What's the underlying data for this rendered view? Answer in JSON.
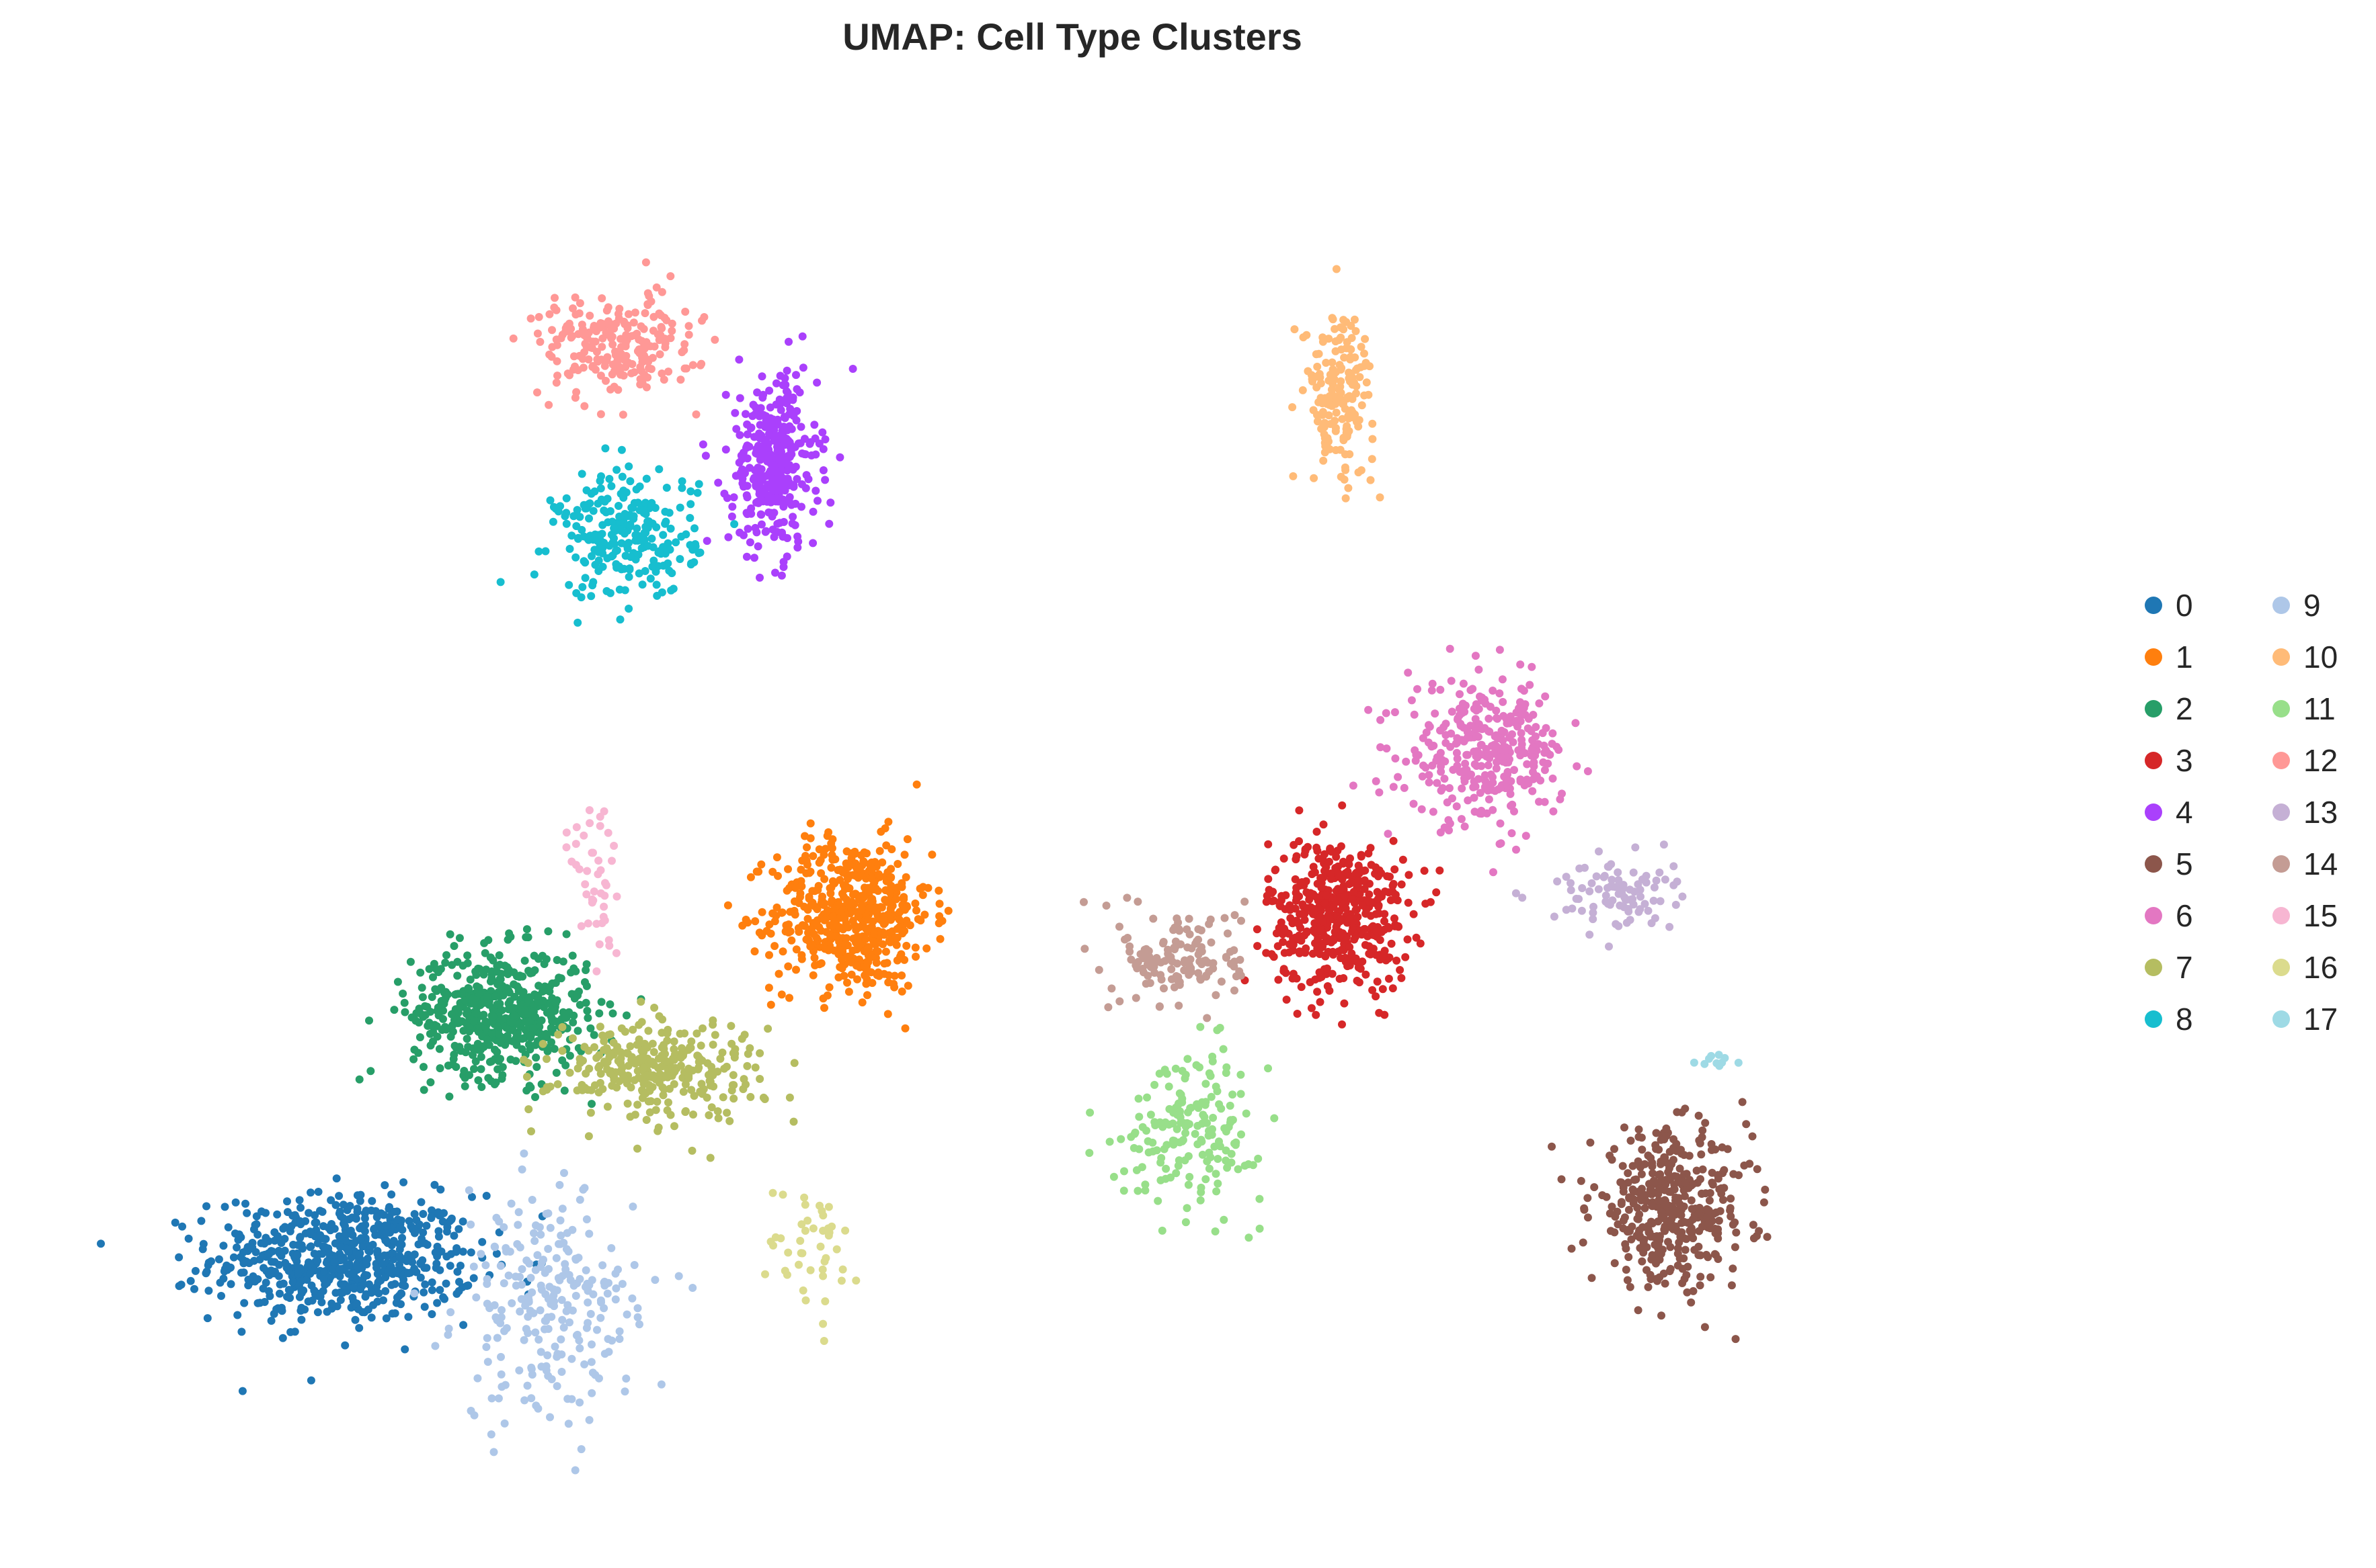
{
  "chart_data": {
    "type": "scatter",
    "title": "UMAP: Cell Type Clusters",
    "xlabel": "",
    "ylabel": "",
    "axes_visible": false,
    "grid": false,
    "legend_placement": "right",
    "legend_columns": 2,
    "xlim": [
      0,
      100
    ],
    "ylim": [
      0,
      100
    ],
    "series": [
      {
        "name": "0",
        "color": "#1f77b4",
        "n_points": 650,
        "center": [
          12.5,
          18.5
        ],
        "spread": [
          7.5,
          5.0
        ]
      },
      {
        "name": "1",
        "color": "#ff7f0e",
        "n_points": 550,
        "center": [
          38.5,
          43.0
        ],
        "spread": [
          4.5,
          6.0
        ]
      },
      {
        "name": "2",
        "color": "#279e68",
        "n_points": 550,
        "center": [
          20.5,
          36.0
        ],
        "spread": [
          5.0,
          5.0
        ]
      },
      {
        "name": "3",
        "color": "#d62728",
        "n_points": 480,
        "center": [
          63.5,
          43.0
        ],
        "spread": [
          4.0,
          6.0
        ]
      },
      {
        "name": "4",
        "color": "#aa40fc",
        "n_points": 350,
        "center": [
          34.5,
          75.0
        ],
        "spread": [
          2.5,
          7.0
        ]
      },
      {
        "name": "5",
        "color": "#8c564b",
        "n_points": 400,
        "center": [
          80.5,
          22.0
        ],
        "spread": [
          4.5,
          6.0
        ]
      },
      {
        "name": "6",
        "color": "#e377c2",
        "n_points": 330,
        "center": [
          71.0,
          54.5
        ],
        "spread": [
          4.5,
          5.5
        ]
      },
      {
        "name": "7",
        "color": "#b5bd61",
        "n_points": 300,
        "center": [
          28.5,
          32.0
        ],
        "spread": [
          6.0,
          4.0
        ]
      },
      {
        "name": "8",
        "color": "#17becf",
        "n_points": 250,
        "center": [
          27.0,
          70.0
        ],
        "spread": [
          4.0,
          5.0
        ]
      },
      {
        "name": "9",
        "color": "#aec7e8",
        "n_points": 250,
        "center": [
          23.0,
          15.0
        ],
        "spread": [
          5.0,
          9.0
        ]
      },
      {
        "name": "10",
        "color": "#ffbb78",
        "n_points": 170,
        "center": [
          63.5,
          80.0
        ],
        "spread": [
          2.0,
          6.5
        ]
      },
      {
        "name": "11",
        "color": "#98df8a",
        "n_points": 180,
        "center": [
          56.0,
          28.0
        ],
        "spread": [
          4.0,
          6.0
        ]
      },
      {
        "name": "12",
        "color": "#ff9896",
        "n_points": 230,
        "center": [
          26.5,
          83.5
        ],
        "spread": [
          4.5,
          4.0
        ]
      },
      {
        "name": "13",
        "color": "#c5b0d5",
        "n_points": 90,
        "center": [
          77.5,
          44.5
        ],
        "spread": [
          3.5,
          3.0
        ]
      },
      {
        "name": "14",
        "color": "#c49c94",
        "n_points": 140,
        "center": [
          55.5,
          40.0
        ],
        "spread": [
          3.5,
          4.0
        ]
      },
      {
        "name": "15",
        "color": "#f7b6d2",
        "n_points": 45,
        "center": [
          25.5,
          45.0
        ],
        "spread": [
          1.5,
          8.0
        ]
      },
      {
        "name": "16",
        "color": "#dbdb8d",
        "n_points": 45,
        "center": [
          36.5,
          19.0
        ],
        "spread": [
          2.5,
          6.0
        ]
      },
      {
        "name": "17",
        "color": "#9edae5",
        "n_points": 10,
        "center": [
          83.0,
          32.5
        ],
        "spread": [
          1.0,
          0.5
        ]
      }
    ]
  }
}
